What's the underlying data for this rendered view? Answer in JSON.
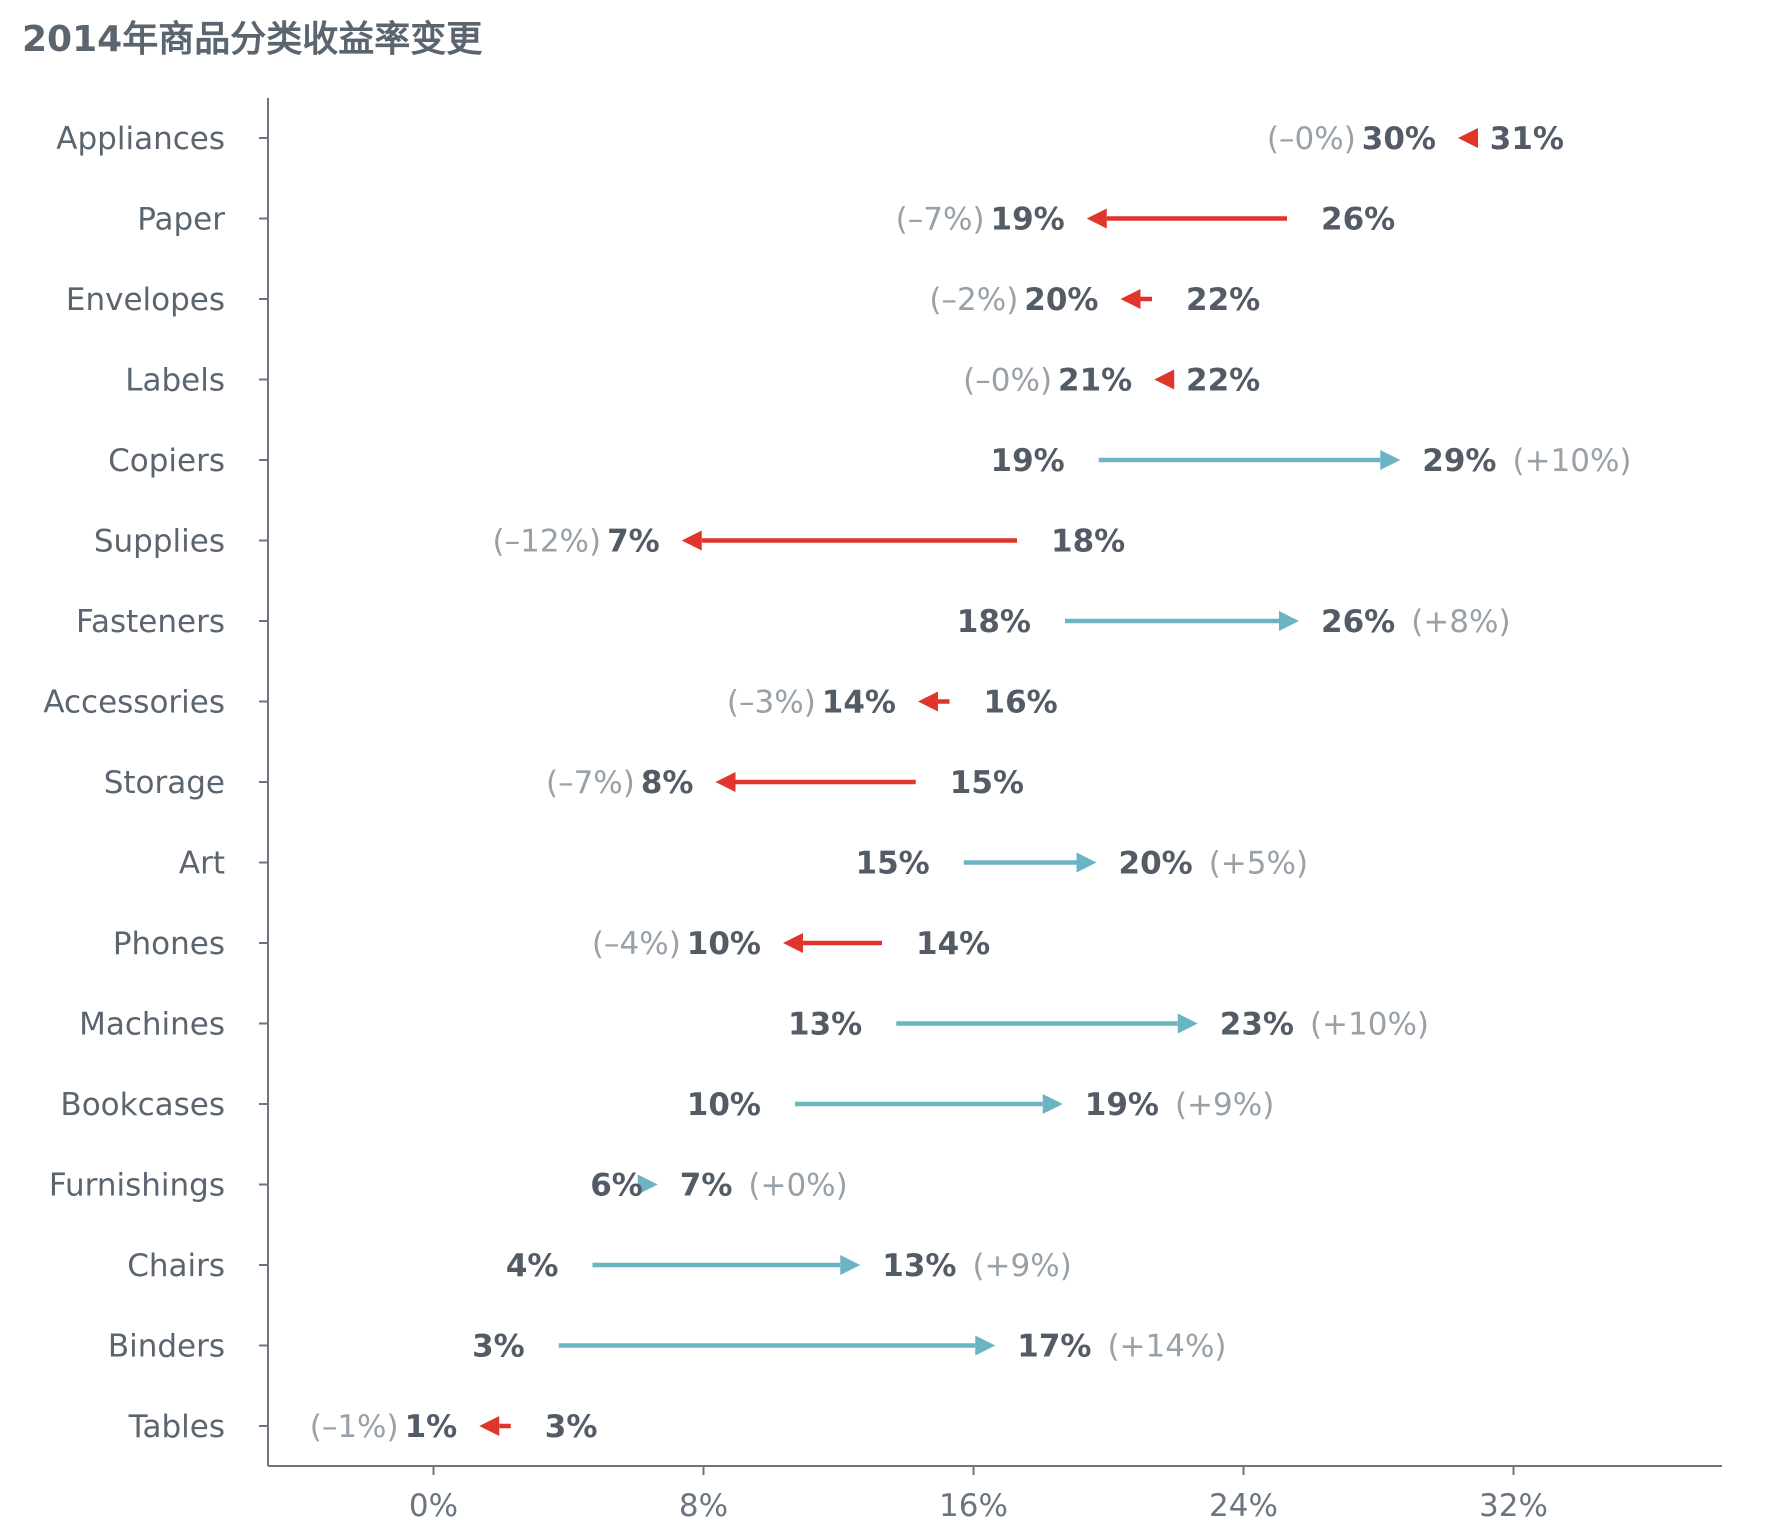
{
  "colors": {
    "decrease": "#e0352b",
    "increase": "#6ab4c4",
    "text": "#535c66",
    "muted": "#98a0a8",
    "axis": "#6b7580"
  },
  "chart_data": {
    "type": "arrow-dumbbell",
    "title": "2014年商品分类收益率变更",
    "xlabel": "",
    "ylabel": "",
    "xlim": [
      -0.06,
      0.4
    ],
    "x_ticks": [
      0,
      0.08,
      0.16,
      0.24,
      0.32
    ],
    "x_tick_labels": [
      "0%",
      "8%",
      "16%",
      "24%",
      "32%"
    ],
    "grid": false,
    "categories": [
      "Appliances",
      "Paper",
      "Envelopes",
      "Labels",
      "Copiers",
      "Supplies",
      "Fasteners",
      "Accessories",
      "Storage",
      "Art",
      "Phones",
      "Machines",
      "Bookcases",
      "Furnishings",
      "Chairs",
      "Binders",
      "Tables"
    ],
    "series": [
      {
        "category": "Appliances",
        "from": 0.31,
        "to": 0.3,
        "from_label": "31%",
        "to_label": "30%",
        "diff_label": "(–0%)"
      },
      {
        "category": "Paper",
        "from": 0.26,
        "to": 0.19,
        "from_label": "26%",
        "to_label": "19%",
        "diff_label": "(–7%)"
      },
      {
        "category": "Envelopes",
        "from": 0.22,
        "to": 0.2,
        "from_label": "22%",
        "to_label": "20%",
        "diff_label": "(–2%)"
      },
      {
        "category": "Labels",
        "from": 0.22,
        "to": 0.21,
        "from_label": "22%",
        "to_label": "21%",
        "diff_label": "(–0%)"
      },
      {
        "category": "Copiers",
        "from": 0.19,
        "to": 0.29,
        "from_label": "19%",
        "to_label": "29%",
        "diff_label": "(+10%)"
      },
      {
        "category": "Supplies",
        "from": 0.18,
        "to": 0.07,
        "from_label": "18%",
        "to_label": "7%",
        "diff_label": "(–12%)"
      },
      {
        "category": "Fasteners",
        "from": 0.18,
        "to": 0.26,
        "from_label": "18%",
        "to_label": "26%",
        "diff_label": "(+8%)"
      },
      {
        "category": "Accessories",
        "from": 0.16,
        "to": 0.14,
        "from_label": "16%",
        "to_label": "14%",
        "diff_label": "(–3%)"
      },
      {
        "category": "Storage",
        "from": 0.15,
        "to": 0.08,
        "from_label": "15%",
        "to_label": "8%",
        "diff_label": "(–7%)"
      },
      {
        "category": "Art",
        "from": 0.15,
        "to": 0.2,
        "from_label": "15%",
        "to_label": "20%",
        "diff_label": "(+5%)"
      },
      {
        "category": "Phones",
        "from": 0.14,
        "to": 0.1,
        "from_label": "14%",
        "to_label": "10%",
        "diff_label": "(–4%)"
      },
      {
        "category": "Machines",
        "from": 0.13,
        "to": 0.23,
        "from_label": "13%",
        "to_label": "23%",
        "diff_label": "(+10%)"
      },
      {
        "category": "Bookcases",
        "from": 0.1,
        "to": 0.19,
        "from_label": "10%",
        "to_label": "19%",
        "diff_label": "(+9%)"
      },
      {
        "category": "Furnishings",
        "from": 0.065,
        "to": 0.07,
        "from_label": "6%",
        "to_label": "7%",
        "diff_label": "(+0%)"
      },
      {
        "category": "Chairs",
        "from": 0.04,
        "to": 0.13,
        "from_label": "4%",
        "to_label": "13%",
        "diff_label": "(+9%)"
      },
      {
        "category": "Binders",
        "from": 0.03,
        "to": 0.17,
        "from_label": "3%",
        "to_label": "17%",
        "diff_label": "(+14%)"
      },
      {
        "category": "Tables",
        "from": 0.03,
        "to": 0.01,
        "from_label": "3%",
        "to_label": "1%",
        "diff_label": "(–1%)"
      }
    ]
  }
}
